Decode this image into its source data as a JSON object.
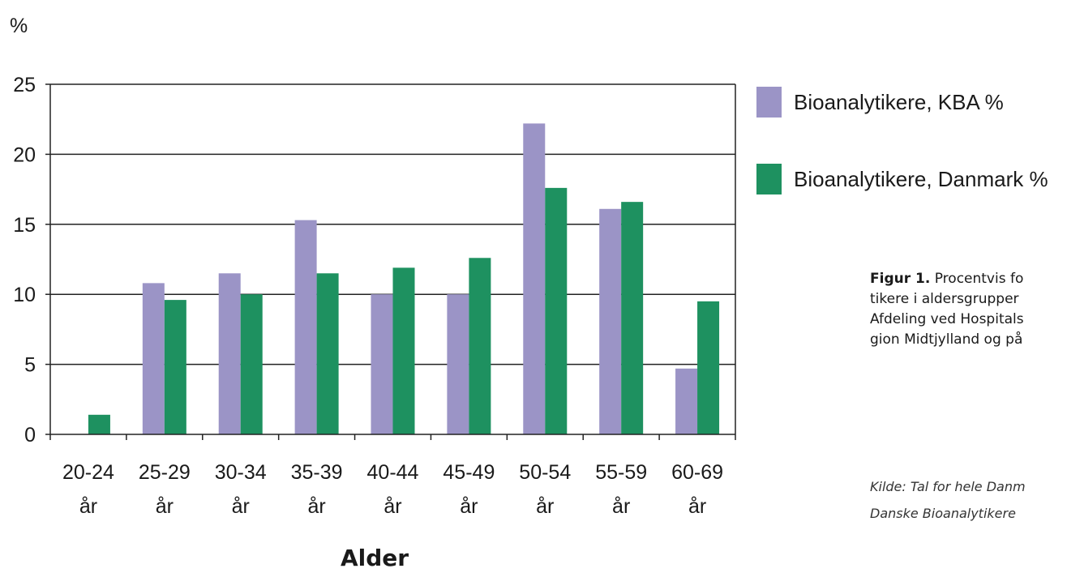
{
  "chart_data": {
    "type": "bar",
    "ylabel": "%",
    "xlabel": "Alder",
    "ylim": [
      0,
      25
    ],
    "yticks": [
      0,
      5,
      10,
      15,
      20,
      25
    ],
    "grid": "horizontal",
    "legend_position": "right",
    "categories": [
      [
        "20-24",
        "år"
      ],
      [
        "25-29",
        "år"
      ],
      [
        "30-34",
        "år"
      ],
      [
        "35-39",
        "år"
      ],
      [
        "40-44",
        "år"
      ],
      [
        "45-49",
        "år"
      ],
      [
        "50-54",
        "år"
      ],
      [
        "55-59",
        "år"
      ],
      [
        "60-69",
        "år"
      ]
    ],
    "series": [
      {
        "name": "Bioanalytikere, KBA %",
        "color": "#9b94c6",
        "values": [
          0,
          10.8,
          11.5,
          15.3,
          10,
          10,
          22.2,
          16.1,
          4.7
        ]
      },
      {
        "name": "Bioanalytikere, Danmark %",
        "color": "#1e9160",
        "values": [
          1.4,
          9.6,
          10,
          11.5,
          11.9,
          12.6,
          17.6,
          16.6,
          9.5
        ]
      }
    ]
  },
  "caption": {
    "label": "Figur 1.",
    "lines": [
      "Procentvis fo",
      "tikere i aldersgrupper",
      "Afdeling ved Hospitals",
      "gion Midtjylland og på"
    ]
  },
  "source": {
    "lines": [
      "Kilde: Tal for hele Danm",
      "Danske Bioanalytikere"
    ]
  }
}
